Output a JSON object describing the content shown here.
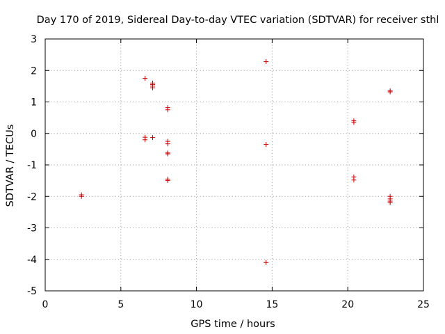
{
  "chart_data": {
    "type": "scatter",
    "title": "Day 170 of 2019, Sidereal Day-to-day VTEC variation (SDTVAR) for receiver sthl",
    "xlabel": "GPS time / hours",
    "ylabel": "SDTVAR / TECUs",
    "xlim": [
      0,
      25
    ],
    "ylim": [
      -5,
      3
    ],
    "xticks": [
      0,
      5,
      10,
      15,
      20,
      25
    ],
    "yticks": [
      -5,
      -4,
      -3,
      -2,
      -1,
      0,
      1,
      2,
      3
    ],
    "grid": true,
    "marker": "+",
    "color": "#cc0000",
    "series": [
      {
        "name": "sthl",
        "points": [
          [
            2.4,
            -1.95
          ],
          [
            2.4,
            -2.0
          ],
          [
            6.6,
            1.75
          ],
          [
            6.6,
            -0.12
          ],
          [
            6.6,
            -0.2
          ],
          [
            7.1,
            1.6
          ],
          [
            7.1,
            1.55
          ],
          [
            7.1,
            1.5
          ],
          [
            7.1,
            1.45
          ],
          [
            7.1,
            -0.13
          ],
          [
            8.1,
            0.82
          ],
          [
            8.1,
            0.75
          ],
          [
            8.1,
            -0.25
          ],
          [
            8.1,
            -0.33
          ],
          [
            8.1,
            -0.62
          ],
          [
            8.1,
            -0.65
          ],
          [
            8.1,
            -1.45
          ],
          [
            8.1,
            -1.5
          ],
          [
            14.6,
            2.28
          ],
          [
            14.6,
            -0.35
          ],
          [
            14.6,
            -4.1
          ],
          [
            20.4,
            0.4
          ],
          [
            20.4,
            0.35
          ],
          [
            20.4,
            -1.38
          ],
          [
            20.4,
            -1.48
          ],
          [
            22.8,
            1.35
          ],
          [
            22.8,
            1.32
          ],
          [
            22.8,
            -2.0
          ],
          [
            22.8,
            -2.08
          ],
          [
            22.8,
            -2.15
          ],
          [
            22.8,
            -2.2
          ]
        ]
      }
    ]
  }
}
